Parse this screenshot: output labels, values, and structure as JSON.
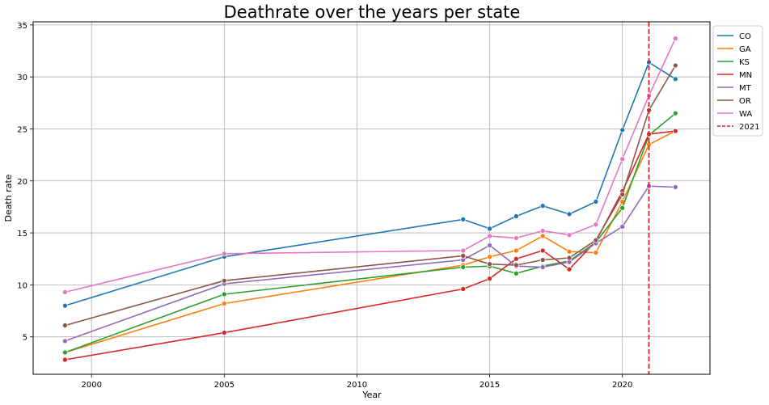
{
  "chart_data": {
    "type": "line",
    "title": "Deathrate over the years per state",
    "xlabel": "Year",
    "ylabel": "Death rate",
    "xlim": [
      1997.8,
      2023.3
    ],
    "ylim": [
      1.4,
      35.3
    ],
    "xticks": [
      "2000",
      "2005",
      "2010",
      "2015",
      "2020"
    ],
    "yticks": [
      "5",
      "10",
      "15",
      "20",
      "25",
      "30",
      "35"
    ],
    "grid": true,
    "legend_position": "outside top-right",
    "x": [
      1999,
      2005,
      2014,
      2015,
      2016,
      2017,
      2018,
      2019,
      2020,
      2021,
      2022
    ],
    "series": [
      {
        "name": "CO",
        "color": "#1f77b4",
        "values": [
          8.0,
          12.7,
          16.3,
          15.4,
          16.6,
          17.6,
          16.8,
          18.0,
          24.9,
          31.4,
          29.8
        ]
      },
      {
        "name": "GA",
        "color": "#ff7f0e",
        "values": [
          3.5,
          8.2,
          11.9,
          12.7,
          13.3,
          14.7,
          13.2,
          13.1,
          18.0,
          23.5,
          24.8
        ]
      },
      {
        "name": "KS",
        "color": "#2ca02c",
        "values": [
          3.5,
          9.1,
          11.7,
          11.8,
          11.1,
          11.8,
          12.3,
          14.1,
          17.4,
          24.4,
          26.5
        ]
      },
      {
        "name": "MN",
        "color": "#d62728",
        "values": [
          2.8,
          5.4,
          9.6,
          10.6,
          12.5,
          13.3,
          11.5,
          14.2,
          19.0,
          24.5,
          24.8
        ]
      },
      {
        "name": "MT",
        "color": "#9467bd",
        "values": [
          4.6,
          10.1,
          12.4,
          13.8,
          11.8,
          11.7,
          12.2,
          14.0,
          15.6,
          19.5,
          19.4
        ]
      },
      {
        "name": "OR",
        "color": "#8c564b",
        "values": [
          6.1,
          10.4,
          12.8,
          12.0,
          11.9,
          12.4,
          12.6,
          14.3,
          18.7,
          26.8,
          31.1
        ]
      },
      {
        "name": "WA",
        "color": "#e377c2",
        "values": [
          9.3,
          13.0,
          13.3,
          14.7,
          14.5,
          15.2,
          14.8,
          15.8,
          22.1,
          28.2,
          33.7
        ]
      }
    ],
    "annotations": [
      {
        "type": "vline",
        "x": 2021,
        "label": "2021",
        "color": "#d62728",
        "style": "dashed"
      }
    ]
  }
}
